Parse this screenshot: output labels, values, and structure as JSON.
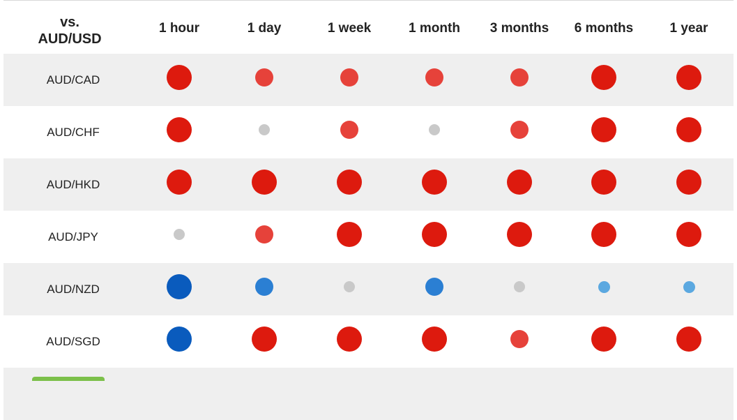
{
  "table": {
    "corner": [
      "vs.",
      "AUD/USD"
    ],
    "columns": [
      "1 hour",
      "1 day",
      "1 week",
      "1 month",
      "3 months",
      "6 months",
      "1 year"
    ],
    "rows": [
      {
        "label": "AUD/CAD",
        "colors": [
          "#dd1a0e",
          "#e6423a",
          "#e6423a",
          "#e6423a",
          "#e6423a",
          "#dd1a0e",
          "#dd1a0e"
        ]
      },
      {
        "label": "AUD/CHF",
        "colors": [
          "#dd1a0e",
          "#c9c9c9",
          "#e6423a",
          "#c9c9c9",
          "#e6423a",
          "#dd1a0e",
          "#dd1a0e"
        ]
      },
      {
        "label": "AUD/HKD",
        "colors": [
          "#dd1a0e",
          "#dd1a0e",
          "#dd1a0e",
          "#dd1a0e",
          "#dd1a0e",
          "#dd1a0e",
          "#dd1a0e"
        ]
      },
      {
        "label": "AUD/JPY",
        "colors": [
          "#c9c9c9",
          "#e6423a",
          "#dd1a0e",
          "#dd1a0e",
          "#dd1a0e",
          "#dd1a0e",
          "#dd1a0e"
        ]
      },
      {
        "label": "AUD/NZD",
        "colors": [
          "#0a5bbd",
          "#2b7fd3",
          "#c9c9c9",
          "#2b7fd3",
          "#c9c9c9",
          "#5ba8e0",
          "#5ba8e0"
        ]
      },
      {
        "label": "AUD/SGD",
        "colors": [
          "#0a5bbd",
          "#dd1a0e",
          "#dd1a0e",
          "#dd1a0e",
          "#e6423a",
          "#dd1a0e",
          "#dd1a0e"
        ]
      }
    ]
  }
}
